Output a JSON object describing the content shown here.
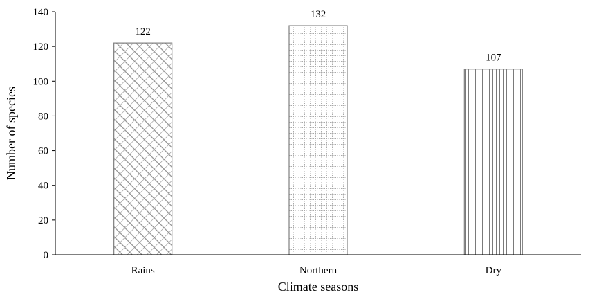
{
  "chart_data": {
    "type": "bar",
    "title": "",
    "xlabel": "Climate seasons",
    "ylabel": "Number of species",
    "categories": [
      "Rains",
      "Northern",
      "Dry"
    ],
    "values": [
      122,
      132,
      107
    ],
    "data_labels": [
      "122",
      "132",
      "107"
    ],
    "ylim": [
      0,
      140
    ],
    "yticks": [
      0,
      20,
      40,
      60,
      80,
      100,
      120,
      140
    ],
    "grid": false,
    "legend": "none",
    "bar_patterns": [
      "diagonal-crosshatch",
      "dotted-grid",
      "vertical-lines"
    ],
    "colors": {
      "bar_stroke": "#7f7f7f",
      "pattern": "#8c8c8c",
      "axis": "#000000"
    }
  }
}
